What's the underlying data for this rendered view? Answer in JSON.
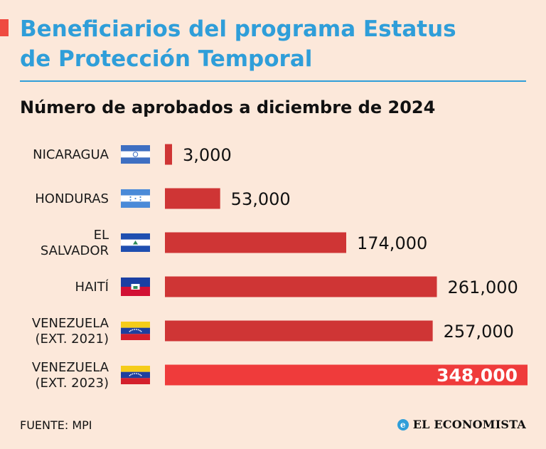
{
  "header": {
    "title": "Beneficiarios del programa Estatus\nde Protección Temporal",
    "subtitle": "Número de aprobados a diciembre de 2024"
  },
  "colors": {
    "accent": "#ef4a40",
    "title": "#2f9ed9",
    "bar": "#cf3535",
    "bar_highlight": "#ef3b3b",
    "background": "#fce8da"
  },
  "chart_data": {
    "type": "bar",
    "orientation": "horizontal",
    "categories": [
      [
        "NICARAGUA"
      ],
      [
        "HONDURAS"
      ],
      [
        "EL",
        "SALVADOR"
      ],
      [
        "HAITÍ"
      ],
      [
        "VENEZUELA",
        "(EXT. 2021)"
      ],
      [
        "VENEZUELA",
        "(EXT. 2023)"
      ]
    ],
    "flags": [
      "nicaragua-flag",
      "honduras-flag",
      "el-salvador-flag",
      "haiti-flag",
      "venezuela-flag",
      "venezuela-flag"
    ],
    "values": [
      3000,
      53000,
      174000,
      261000,
      257000,
      348000
    ],
    "value_labels": [
      "3,000",
      "53,000",
      "174,000",
      "261,000",
      "257,000",
      "348,000"
    ],
    "highlight": [
      false,
      false,
      false,
      false,
      false,
      true
    ],
    "xlim": [
      0,
      348000
    ],
    "grid": false
  },
  "footer": {
    "source": "FUENTE: MPI",
    "brand": "EL ECONOMISTA",
    "brand_mark": "e"
  }
}
